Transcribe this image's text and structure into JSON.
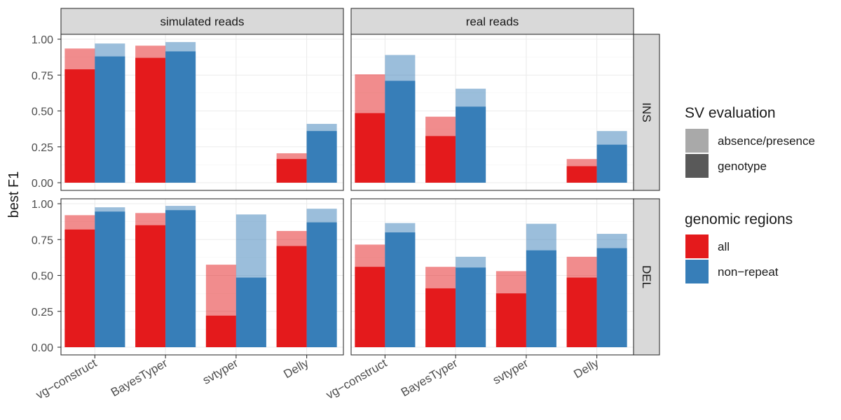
{
  "chart_data": {
    "type": "bar",
    "title": "",
    "ylabel": "best F1",
    "xlabel": "",
    "ylim": [
      0,
      1.05
    ],
    "yticks": [
      "0.00",
      "0.25",
      "0.50",
      "0.75",
      "1.00"
    ],
    "categories": [
      "vg−construct",
      "BayesTyper",
      "svtyper",
      "Delly"
    ],
    "col_facets": [
      "simulated reads",
      "real reads"
    ],
    "row_facets": [
      "INS",
      "DEL"
    ],
    "grid": true,
    "legend_position": "right",
    "legends": [
      {
        "title": "SV evaluation",
        "entries": [
          {
            "label": "absence/presence",
            "color": "#a9a9a9"
          },
          {
            "label": "genotype",
            "color": "#595959"
          }
        ]
      },
      {
        "title": "genomic regions",
        "entries": [
          {
            "label": "all",
            "color": "#e41a1c"
          },
          {
            "label": "non−repeat",
            "color": "#377eb8"
          }
        ]
      }
    ],
    "colors": {
      "all": "#e41a1c",
      "non-repeat": "#377eb8",
      "strip": "#d9d9d9"
    },
    "panels": [
      {
        "col": "simulated reads",
        "row": "INS",
        "series": [
          {
            "region": "all",
            "evaluation": "absence/presence",
            "values": [
              0.935,
              0.955,
              0,
              0.205
            ]
          },
          {
            "region": "all",
            "evaluation": "genotype",
            "values": [
              0.79,
              0.87,
              0,
              0.165
            ]
          },
          {
            "region": "non-repeat",
            "evaluation": "absence/presence",
            "values": [
              0.97,
              0.98,
              0,
              0.41
            ]
          },
          {
            "region": "non-repeat",
            "evaluation": "genotype",
            "values": [
              0.88,
              0.915,
              0,
              0.36
            ]
          }
        ]
      },
      {
        "col": "real reads",
        "row": "INS",
        "series": [
          {
            "region": "all",
            "evaluation": "absence/presence",
            "values": [
              0.755,
              0.46,
              0,
              0.165
            ]
          },
          {
            "region": "all",
            "evaluation": "genotype",
            "values": [
              0.485,
              0.325,
              0,
              0.115
            ]
          },
          {
            "region": "non-repeat",
            "evaluation": "absence/presence",
            "values": [
              0.89,
              0.655,
              0,
              0.36
            ]
          },
          {
            "region": "non-repeat",
            "evaluation": "genotype",
            "values": [
              0.71,
              0.53,
              0,
              0.265
            ]
          }
        ]
      },
      {
        "col": "simulated reads",
        "row": "DEL",
        "series": [
          {
            "region": "all",
            "evaluation": "absence/presence",
            "values": [
              0.92,
              0.935,
              0.575,
              0.81
            ]
          },
          {
            "region": "all",
            "evaluation": "genotype",
            "values": [
              0.82,
              0.85,
              0.22,
              0.705
            ]
          },
          {
            "region": "non-repeat",
            "evaluation": "absence/presence",
            "values": [
              0.975,
              0.985,
              0.925,
              0.965
            ]
          },
          {
            "region": "non-repeat",
            "evaluation": "genotype",
            "values": [
              0.945,
              0.955,
              0.485,
              0.87
            ]
          }
        ]
      },
      {
        "col": "real reads",
        "row": "DEL",
        "series": [
          {
            "region": "all",
            "evaluation": "absence/presence",
            "values": [
              0.715,
              0.56,
              0.53,
              0.63
            ]
          },
          {
            "region": "all",
            "evaluation": "genotype",
            "values": [
              0.56,
              0.41,
              0.375,
              0.485
            ]
          },
          {
            "region": "non-repeat",
            "evaluation": "absence/presence",
            "values": [
              0.865,
              0.63,
              0.86,
              0.79
            ]
          },
          {
            "region": "non-repeat",
            "evaluation": "genotype",
            "values": [
              0.8,
              0.555,
              0.675,
              0.69
            ]
          }
        ]
      }
    ]
  }
}
